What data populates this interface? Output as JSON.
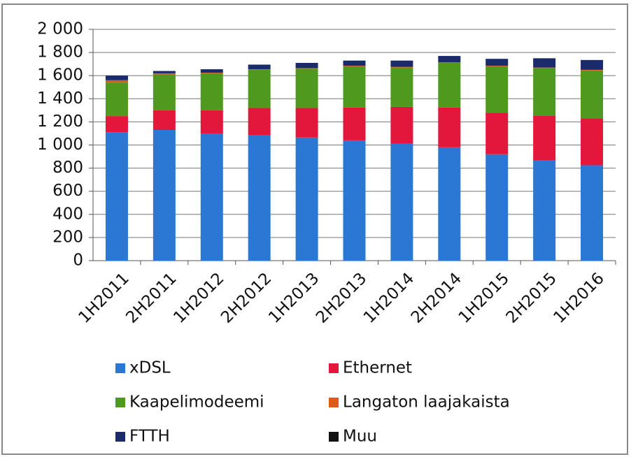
{
  "chart_data": {
    "type": "stacked-bar",
    "categories": [
      "1H2011",
      "2H2011",
      "1H2012",
      "2H2012",
      "1H2013",
      "2H2013",
      "1H2014",
      "2H2014",
      "1H2015",
      "2H2015",
      "1H2016"
    ],
    "series": [
      {
        "name": "xDSL",
        "color": "#2a78d4",
        "values": [
          1110,
          1130,
          1100,
          1085,
          1065,
          1040,
          1010,
          980,
          920,
          870,
          825
        ]
      },
      {
        "name": "Ethernet",
        "color": "#e3163c",
        "values": [
          140,
          170,
          200,
          235,
          255,
          285,
          320,
          345,
          360,
          385,
          405
        ]
      },
      {
        "name": "Kaapelimodeemi",
        "color": "#4f9a1e",
        "values": [
          290,
          310,
          320,
          330,
          340,
          355,
          340,
          385,
          400,
          410,
          415
        ]
      },
      {
        "name": "Langaton laajakaista",
        "color": "#e05a1a",
        "values": [
          20,
          10,
          5,
          5,
          5,
          5,
          5,
          5,
          5,
          5,
          5
        ]
      },
      {
        "name": "FTTH",
        "color": "#1b2a6b",
        "values": [
          40,
          20,
          30,
          40,
          45,
          45,
          55,
          55,
          60,
          80,
          85
        ]
      },
      {
        "name": "Muu",
        "color": "#111111",
        "values": [
          0,
          0,
          0,
          0,
          0,
          0,
          0,
          0,
          0,
          0,
          0
        ]
      }
    ],
    "ylim": [
      0,
      2000
    ],
    "yticks": [
      0,
      200,
      400,
      600,
      800,
      {
        "value": 1000,
        "label": "1 000"
      },
      {
        "value": 1200,
        "label": "1 200"
      },
      {
        "value": 1400,
        "label": "1 400"
      },
      {
        "value": 1600,
        "label": "1 600"
      },
      {
        "value": 1800,
        "label": "1 800"
      },
      {
        "value": 2000,
        "label": "2 000"
      }
    ],
    "grid": true,
    "legend": "bottom"
  }
}
